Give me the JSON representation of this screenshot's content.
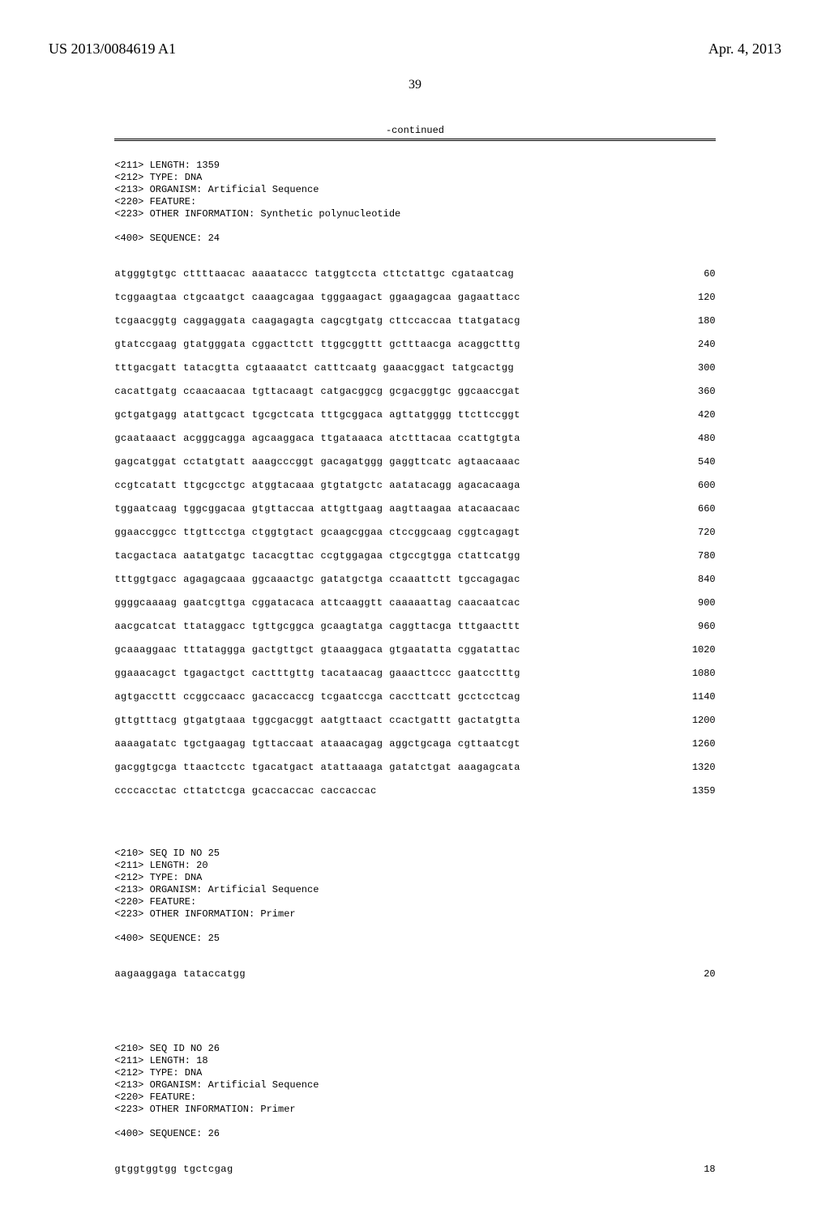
{
  "header": {
    "doc_number": "US 2013/0084619 A1",
    "date": "Apr. 4, 2013"
  },
  "page_number": "39",
  "continued_label": "-continued",
  "seq24_header": {
    "length": "<211> LENGTH: 1359",
    "type": "<212> TYPE: DNA",
    "organism": "<213> ORGANISM: Artificial Sequence",
    "feature": "<220> FEATURE:",
    "info": "<223> OTHER INFORMATION: Synthetic polynucleotide",
    "seq_label": "<400> SEQUENCE: 24"
  },
  "seq24_lines": [
    {
      "bases": "atgggtgtgc cttttaacac aaaataccc tatggtccta cttctattgc cgataatcag",
      "num": "60"
    },
    {
      "bases": "tcggaagtaa ctgcaatgct caaagcagaa tgggaagact ggaagagcaa gagaattacc",
      "num": "120"
    },
    {
      "bases": "tcgaacggtg caggaggata caagagagta cagcgtgatg cttccaccaa ttatgatacg",
      "num": "180"
    },
    {
      "bases": "gtatccgaag gtatgggata cggacttctt ttggcggttt gctttaacga acaggctttg",
      "num": "240"
    },
    {
      "bases": "tttgacgatt tatacgtta cgtaaaatct catttcaatg gaaacggact tatgcactgg",
      "num": "300"
    },
    {
      "bases": "cacattgatg ccaacaacaa tgttacaagt catgacggcg gcgacggtgc ggcaaccgat",
      "num": "360"
    },
    {
      "bases": "gctgatgagg atattgcact tgcgctcata tttgcggaca agttatgggg ttcttccggt",
      "num": "420"
    },
    {
      "bases": "gcaataaact acgggcagga agcaaggaca ttgataaaca atctttacaa ccattgtgta",
      "num": "480"
    },
    {
      "bases": "gagcatggat cctatgtatt aaagcccggt gacagatggg gaggttcatc agtaacaaac",
      "num": "540"
    },
    {
      "bases": "ccgtcatatt ttgcgcctgc atggtacaaa gtgtatgctc aatatacagg agacacaaga",
      "num": "600"
    },
    {
      "bases": "tggaatcaag tggcggacaa gtgttaccaa attgttgaag aagttaagaa atacaacaac",
      "num": "660"
    },
    {
      "bases": "ggaaccggcc ttgttcctga ctggtgtact gcaagcggaa ctccggcaag cggtcagagt",
      "num": "720"
    },
    {
      "bases": "tacgactaca aatatgatgc tacacgttac ccgtggagaa ctgccgtgga ctattcatgg",
      "num": "780"
    },
    {
      "bases": "tttggtgacc agagagcaaa ggcaaactgc gatatgctga ccaaattctt tgccagagac",
      "num": "840"
    },
    {
      "bases": "ggggcaaaag gaatcgttga cggatacaca attcaaggtt caaaaattag caacaatcac",
      "num": "900"
    },
    {
      "bases": "aacgcatcat ttataggacc tgttgcggca gcaagtatga caggttacga tttgaacttt",
      "num": "960"
    },
    {
      "bases": "gcaaaggaac tttataggga gactgttgct gtaaaggaca gtgaatatta cggatattac",
      "num": "1020"
    },
    {
      "bases": "ggaaacagct tgagactgct cactttgttg tacataacag gaaacttccc gaatcctttg",
      "num": "1080"
    },
    {
      "bases": "agtgaccttt ccggccaacc gacaccaccg tcgaatccga caccttcatt gcctcctcag",
      "num": "1140"
    },
    {
      "bases": "gttgtttacg gtgatgtaaa tggcgacggt aatgttaact ccactgattt gactatgtta",
      "num": "1200"
    },
    {
      "bases": "aaaagatatc tgctgaagag tgttaccaat ataaacagag aggctgcaga cgttaatcgt",
      "num": "1260"
    },
    {
      "bases": "gacggtgcga ttaactcctc tgacatgact atattaaaga gatatctgat aaagagcata",
      "num": "1320"
    },
    {
      "bases": "ccccacctac cttatctcga gcaccaccac caccaccac",
      "num": "1359"
    }
  ],
  "seq25_header": {
    "id": "<210> SEQ ID NO 25",
    "length": "<211> LENGTH: 20",
    "type": "<212> TYPE: DNA",
    "organism": "<213> ORGANISM: Artificial Sequence",
    "feature": "<220> FEATURE:",
    "info": "<223> OTHER INFORMATION: Primer",
    "seq_label": "<400> SEQUENCE: 25"
  },
  "seq25_line": {
    "bases": "aagaaggaga tataccatgg",
    "num": "20"
  },
  "seq26_header": {
    "id": "<210> SEQ ID NO 26",
    "length": "<211> LENGTH: 18",
    "type": "<212> TYPE: DNA",
    "organism": "<213> ORGANISM: Artificial Sequence",
    "feature": "<220> FEATURE:",
    "info": "<223> OTHER INFORMATION: Primer",
    "seq_label": "<400> SEQUENCE: 26"
  },
  "seq26_line": {
    "bases": "gtggtggtgg tgctcgag",
    "num": "18"
  }
}
